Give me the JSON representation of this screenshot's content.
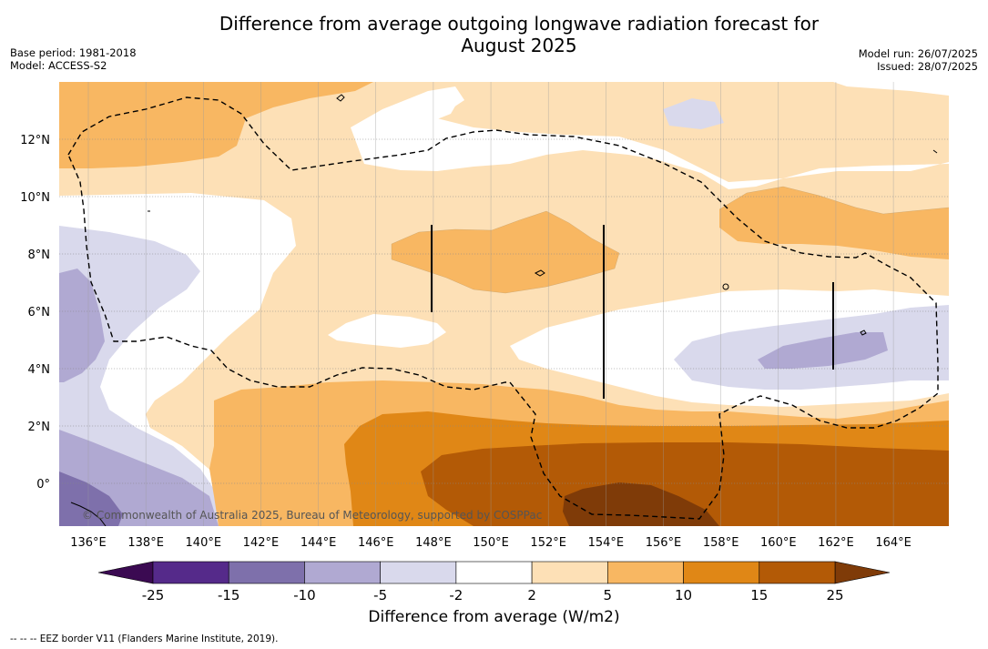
{
  "title": {
    "line1": "Difference from average outgoing longwave radiation forecast for",
    "line2": "August 2025"
  },
  "meta_left": {
    "base_period": "Base period: 1981-2018",
    "model": "Model: ACCESS-S2"
  },
  "meta_right": {
    "model_run": "Model run: 26/07/2025",
    "issued": "Issued: 28/07/2025"
  },
  "map": {
    "lon_labels": [
      "136°E",
      "138°E",
      "140°E",
      "142°E",
      "144°E",
      "146°E",
      "148°E",
      "150°E",
      "152°E",
      "154°E",
      "156°E",
      "158°E",
      "160°E",
      "162°E",
      "164°E"
    ],
    "lat_labels": [
      "12°N",
      "10°N",
      "8°N",
      "6°N",
      "4°N",
      "2°N",
      "0°"
    ],
    "copyright": "© Commonwealth of Australia 2025, Bureau of Meteorology, supported by COSPPac"
  },
  "colorbar": {
    "ticks": [
      "-25",
      "-15",
      "-10",
      "-5",
      "-2",
      "2",
      "5",
      "10",
      "15",
      "25"
    ],
    "colors": [
      "#552a8a",
      "#7e70ab",
      "#b0a9d2",
      "#d9d9ec",
      "#ffffff",
      "#fde0b6",
      "#f8b762",
      "#e08716",
      "#b35a06"
    ],
    "under_color": "#3b0a52",
    "over_color": "#7f3b08",
    "title": "Difference from average (W/m2)"
  },
  "footer": "--  --  -- EEZ border V11 (Flanders Marine Institute, 2019)."
}
